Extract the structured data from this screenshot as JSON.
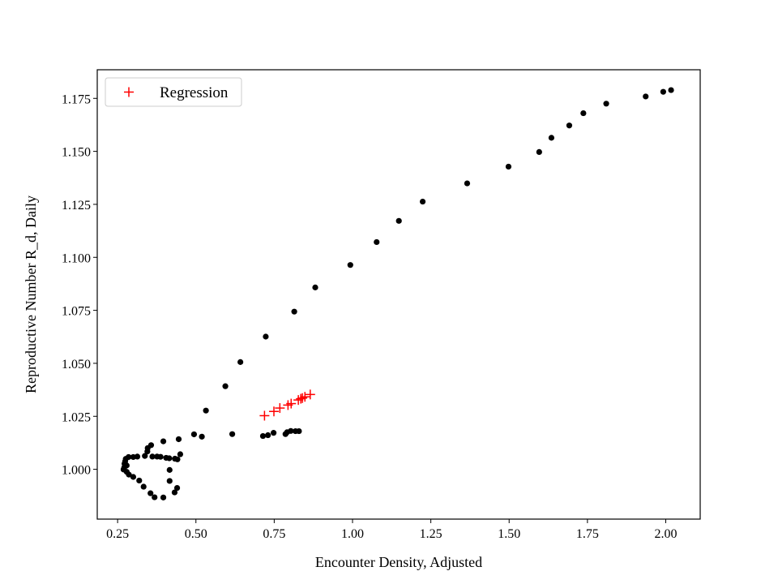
{
  "chart_data": {
    "type": "scatter",
    "title": "",
    "xlabel": "Encounter Density, Adjusted",
    "ylabel": "Reproductive Number R_d, Daily",
    "xlim": [
      0.185,
      2.11
    ],
    "ylim": [
      0.9765,
      1.1885
    ],
    "xticks": [
      0.25,
      0.5,
      0.75,
      1.0,
      1.25,
      1.5,
      1.75,
      2.0
    ],
    "xtick_labels": [
      "0.25",
      "0.50",
      "0.75",
      "1.00",
      "1.25",
      "1.50",
      "1.75",
      "2.00"
    ],
    "yticks": [
      1.0,
      1.025,
      1.05,
      1.075,
      1.1,
      1.125,
      1.15,
      1.175
    ],
    "ytick_labels": [
      "1.000",
      "1.025",
      "1.050",
      "1.075",
      "1.100",
      "1.125",
      "1.150",
      "1.175"
    ],
    "grid": false,
    "legend_position": "top-left",
    "series": [
      {
        "name": "",
        "marker": "circle",
        "color": "#000000",
        "points": [
          [
            2.017,
            1.1789
          ],
          [
            1.992,
            1.1781
          ],
          [
            1.936,
            1.1759
          ],
          [
            1.81,
            1.1725
          ],
          [
            1.737,
            1.168
          ],
          [
            1.692,
            1.1622
          ],
          [
            1.635,
            1.1564
          ],
          [
            1.596,
            1.1497
          ],
          [
            1.498,
            1.1428
          ],
          [
            1.366,
            1.1349
          ],
          [
            1.224,
            1.1263
          ],
          [
            1.148,
            1.1172
          ],
          [
            1.077,
            1.1072
          ],
          [
            0.993,
            1.0964
          ],
          [
            0.881,
            1.0858
          ],
          [
            0.814,
            1.0744
          ],
          [
            0.723,
            1.0626
          ],
          [
            0.642,
            1.0506
          ],
          [
            0.594,
            1.0392
          ],
          [
            0.532,
            1.0277
          ],
          [
            0.616,
            1.0166
          ],
          [
            0.519,
            1.0154
          ],
          [
            0.494,
            1.0165
          ],
          [
            0.714,
            1.0157
          ],
          [
            0.73,
            1.0161
          ],
          [
            0.748,
            1.0172
          ],
          [
            0.786,
            1.0166
          ],
          [
            0.791,
            1.0175
          ],
          [
            0.803,
            1.0181
          ],
          [
            0.818,
            1.018
          ],
          [
            0.829,
            1.018
          ],
          [
            0.445,
            1.0142
          ],
          [
            0.396,
            1.0132
          ],
          [
            0.357,
            1.0114
          ],
          [
            0.346,
            1.01
          ],
          [
            0.345,
            1.0084
          ],
          [
            0.337,
            1.0063
          ],
          [
            0.313,
            1.006
          ],
          [
            0.3,
            1.0058
          ],
          [
            0.285,
            1.0058
          ],
          [
            0.276,
            1.0049
          ],
          [
            0.274,
            1.0037
          ],
          [
            0.272,
            1.0026
          ],
          [
            0.279,
            1.0018
          ],
          [
            0.271,
            1.0008
          ],
          [
            0.269,
            0.9999
          ],
          [
            0.279,
            0.9988
          ],
          [
            0.286,
            0.9975
          ],
          [
            0.3,
            0.9964
          ],
          [
            0.319,
            0.9947
          ],
          [
            0.333,
            0.9918
          ],
          [
            0.355,
            0.9887
          ],
          [
            0.368,
            0.9868
          ],
          [
            0.396,
            0.9867
          ],
          [
            0.432,
            0.9891
          ],
          [
            0.44,
            0.9912
          ],
          [
            0.416,
            0.9945
          ],
          [
            0.416,
            0.9997
          ],
          [
            0.45,
            1.0071
          ],
          [
            0.441,
            1.0047
          ],
          [
            0.433,
            1.005
          ],
          [
            0.415,
            1.0052
          ],
          [
            0.405,
            1.0054
          ],
          [
            0.387,
            1.0059
          ],
          [
            0.376,
            1.006
          ],
          [
            0.361,
            1.006
          ]
        ]
      },
      {
        "name": "Regression",
        "marker": "plus",
        "color": "#ff0000",
        "points": [
          [
            0.719,
            1.0253
          ],
          [
            0.749,
            1.0273
          ],
          [
            0.768,
            1.0289
          ],
          [
            0.794,
            1.0303
          ],
          [
            0.804,
            1.031
          ],
          [
            0.827,
            1.0327
          ],
          [
            0.835,
            1.0333
          ],
          [
            0.84,
            1.0336
          ],
          [
            0.848,
            1.0342
          ],
          [
            0.865,
            1.0353
          ]
        ]
      }
    ]
  }
}
